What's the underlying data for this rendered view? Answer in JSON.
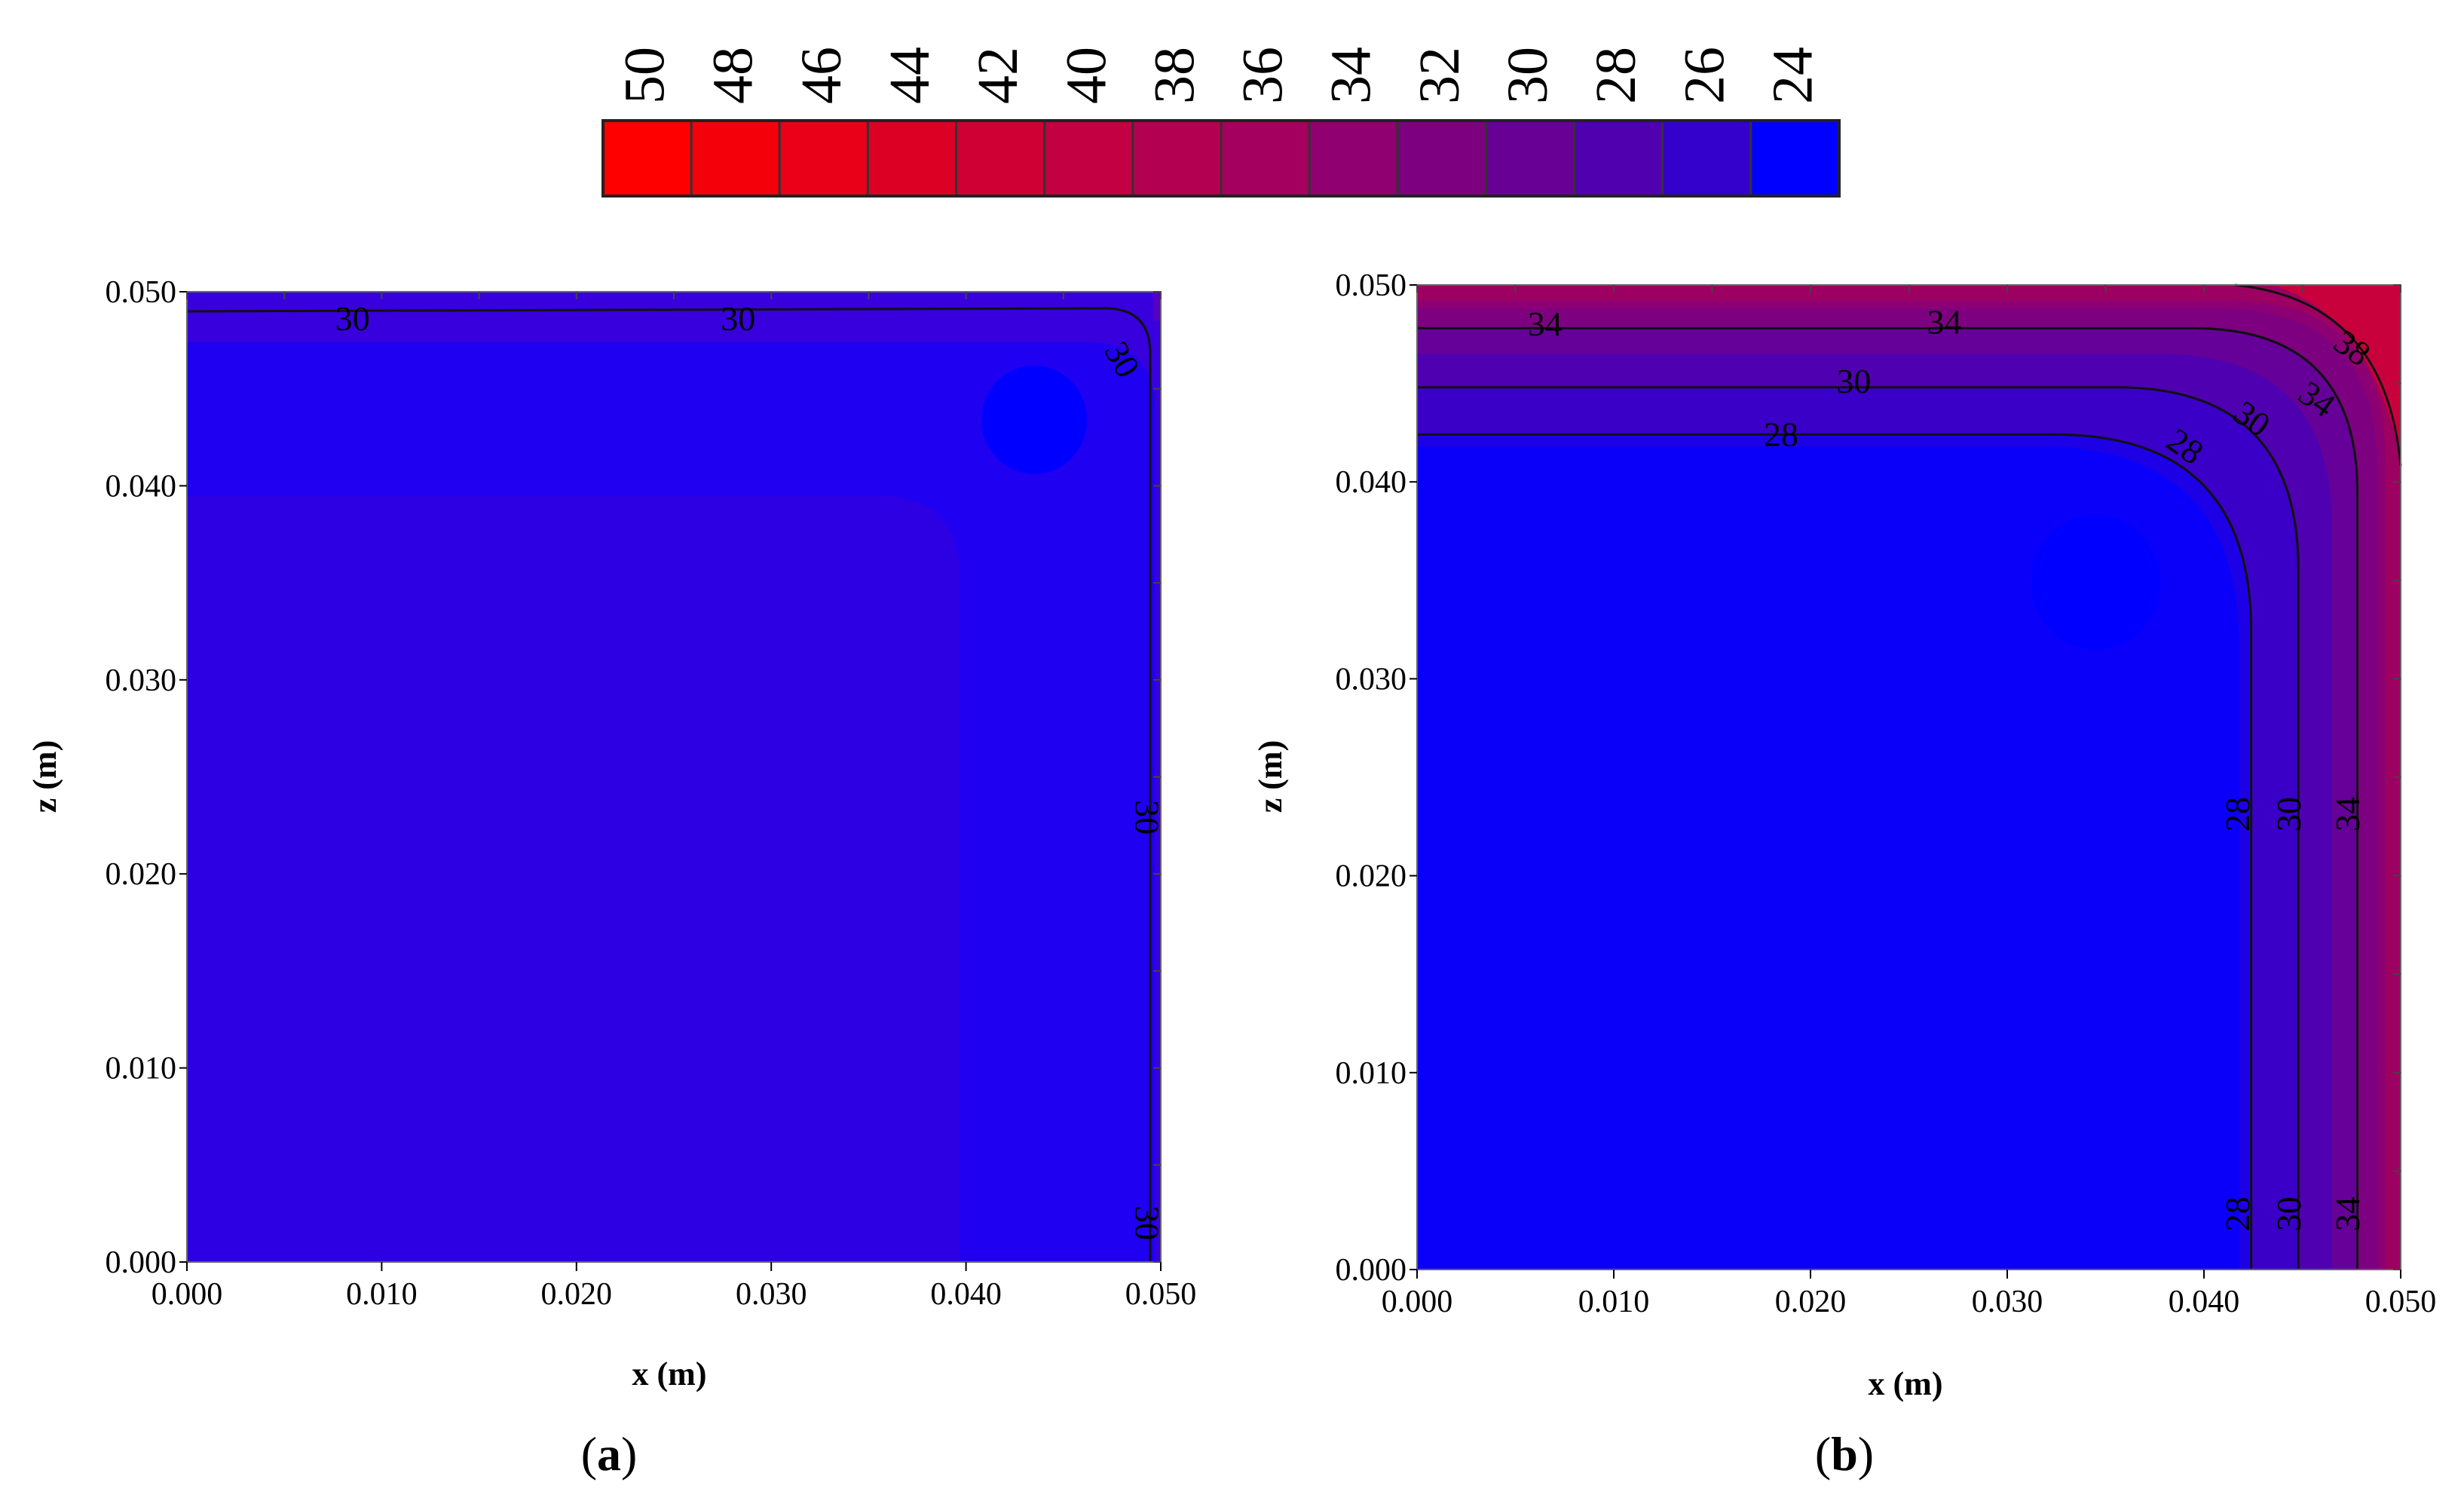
{
  "chart_data": [
    {
      "type": "heatmap",
      "panel": "a",
      "xlabel": "x (m)",
      "ylabel": "z (m)",
      "xlim": [
        0.0,
        0.05
      ],
      "ylim": [
        0.0,
        0.05
      ],
      "xticks": [
        "0.000",
        "0.010",
        "0.020",
        "0.030",
        "0.040",
        "0.050"
      ],
      "yticks": [
        "0.000",
        "0.010",
        "0.020",
        "0.030",
        "0.040",
        "0.050"
      ],
      "regions": [
        {
          "level": "28-30",
          "x": [
            0.0,
            0.05
          ],
          "z": [
            0.0,
            0.05
          ],
          "color": "#3700dd"
        },
        {
          "level": "26-28",
          "x": [
            0.0,
            0.0497
          ],
          "z": [
            0.0,
            0.0474
          ],
          "color": "#1f00f0"
        },
        {
          "level": "28-30",
          "x": [
            0.0,
            0.0397
          ],
          "z": [
            0.0,
            0.0395
          ],
          "color": "#2c00e2"
        },
        {
          "level": "24-26",
          "x_center": 0.0435,
          "z_center": 0.0434,
          "color": "#0000ff"
        },
        {
          "level": "30-32",
          "x": [
            0.0496,
            0.05
          ],
          "z": [
            0.0485,
            0.05
          ],
          "color": "#5600c2"
        }
      ],
      "contour_labels": [
        {
          "text": "30",
          "x": 0.0085,
          "z": 0.0486
        },
        {
          "text": "30",
          "x": 0.0283,
          "z": 0.0486
        },
        {
          "text": "30",
          "x": 0.0475,
          "z": 0.0468
        },
        {
          "text": "30",
          "x": 0.0487,
          "z": 0.0235
        },
        {
          "text": "30",
          "x": 0.0487,
          "z": 0.0026
        }
      ]
    },
    {
      "type": "heatmap",
      "panel": "b",
      "xlabel": "x (m)",
      "ylabel": "z (m)",
      "xlim": [
        0.0,
        0.05
      ],
      "ylim": [
        0.0,
        0.05
      ],
      "xticks": [
        "0.000",
        "0.010",
        "0.020",
        "0.030",
        "0.040",
        "0.050"
      ],
      "yticks": [
        "0.000",
        "0.010",
        "0.020",
        "0.030",
        "0.040",
        "0.050"
      ],
      "bands": [
        {
          "level": "38-40",
          "offset": 0.0,
          "color": "#9c0060"
        },
        {
          "level": "36-38",
          "offset": 0.0008,
          "color": "#8c0073"
        },
        {
          "level": "34-36",
          "offset": 0.0012,
          "color": "#7c0080"
        },
        {
          "level": "32-34",
          "offset": 0.0022,
          "color": "#650099"
        },
        {
          "level": "30-32",
          "offset": 0.0035,
          "color": "#4f00b0"
        },
        {
          "level": "28-30",
          "offset": 0.0052,
          "color": "#3a00c8"
        },
        {
          "level": "26-28",
          "offset": 0.0076,
          "color": "#1d00e6"
        }
      ],
      "hot_corner_color": "#c8003c",
      "cool_spot": {
        "level": "24-26",
        "x_center": 0.0345,
        "z_center": 0.0349,
        "color": "#0000ff"
      },
      "contour_labels": [
        {
          "text": "34",
          "x": 0.0065,
          "z": 0.048
        },
        {
          "text": "34",
          "x": 0.0268,
          "z": 0.0481
        },
        {
          "text": "30",
          "x": 0.0222,
          "z": 0.0451
        },
        {
          "text": "28",
          "x": 0.0185,
          "z": 0.0424
        },
        {
          "text": "28",
          "x": 0.0387,
          "z": 0.0419
        },
        {
          "text": "30",
          "x": 0.0421,
          "z": 0.0433
        },
        {
          "text": "34",
          "x": 0.0454,
          "z": 0.0443
        },
        {
          "text": "38",
          "x": 0.0472,
          "z": 0.0469
        },
        {
          "text": "28",
          "x": 0.0423,
          "z": 0.0237
        },
        {
          "text": "30",
          "x": 0.0449,
          "z": 0.0237
        },
        {
          "text": "34",
          "x": 0.0479,
          "z": 0.0237
        },
        {
          "text": "28",
          "x": 0.0423,
          "z": 0.0034
        },
        {
          "text": "30",
          "x": 0.0449,
          "z": 0.0034
        },
        {
          "text": "34",
          "x": 0.0479,
          "z": 0.0034
        }
      ]
    }
  ],
  "colorbar": {
    "labels": [
      "50",
      "48",
      "46",
      "44",
      "42",
      "40",
      "38",
      "36",
      "34",
      "32",
      "30",
      "28",
      "26",
      "24"
    ],
    "colors": [
      "#ff0000",
      "#f4000b",
      "#e90018",
      "#dc0025",
      "#cf0033",
      "#c20042",
      "#b40050",
      "#a3005f",
      "#910070",
      "#7d0081",
      "#680096",
      "#5000ae",
      "#3300cc",
      "#0000ff"
    ]
  },
  "panel_labels": {
    "a": {
      "open": "(",
      "letter": "a",
      "close": ")"
    },
    "b": {
      "open": "(",
      "letter": "b",
      "close": ")"
    }
  }
}
